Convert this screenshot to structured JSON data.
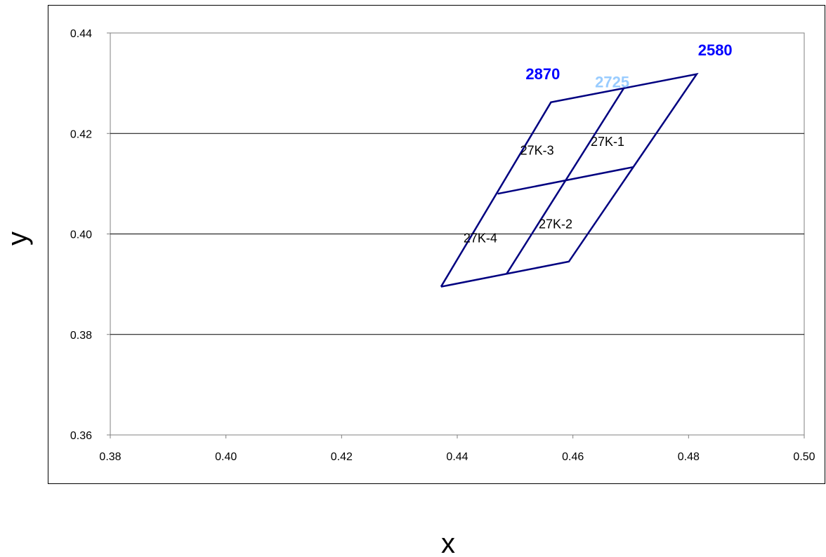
{
  "chart_data": {
    "type": "line",
    "title": "",
    "xlabel": "x",
    "ylabel": "y",
    "xlim": [
      0.38,
      0.5
    ],
    "ylim": [
      0.36,
      0.44
    ],
    "xticks": [
      "0.38",
      "0.40",
      "0.42",
      "0.44",
      "0.46",
      "0.48",
      "0.50"
    ],
    "yticks": [
      "0.44",
      "0.42",
      "0.40",
      "0.38",
      "0.36"
    ],
    "grid": "horizontal",
    "line_color": "#000080",
    "series": [
      {
        "points": [
          [
            0.4372,
            0.3895
          ],
          [
            0.4593,
            0.3945
          ],
          [
            0.4814,
            0.4318
          ],
          [
            0.4562,
            0.4262
          ],
          [
            0.4372,
            0.3895
          ]
        ]
      },
      {
        "points": [
          [
            0.4485,
            0.392
          ],
          [
            0.4688,
            0.429
          ]
        ]
      },
      {
        "points": [
          [
            0.447,
            0.408
          ],
          [
            0.4704,
            0.4133
          ]
        ]
      }
    ],
    "bin_labels": [
      {
        "text": "27K-3",
        "x": 0.4538,
        "y": 0.4158
      },
      {
        "text": "27K-1",
        "x": 0.466,
        "y": 0.4175
      },
      {
        "text": "27K-4",
        "x": 0.444,
        "y": 0.3983
      },
      {
        "text": "27K-2",
        "x": 0.457,
        "y": 0.4011
      }
    ],
    "cct_labels": [
      {
        "text": "2870",
        "x": 0.4548,
        "y": 0.4308,
        "color": "#0000ff"
      },
      {
        "text": "2725",
        "x": 0.4668,
        "y": 0.4292,
        "color": "#99ccff"
      },
      {
        "text": "2580",
        "x": 0.4846,
        "y": 0.4355,
        "color": "#0000ff"
      }
    ]
  }
}
